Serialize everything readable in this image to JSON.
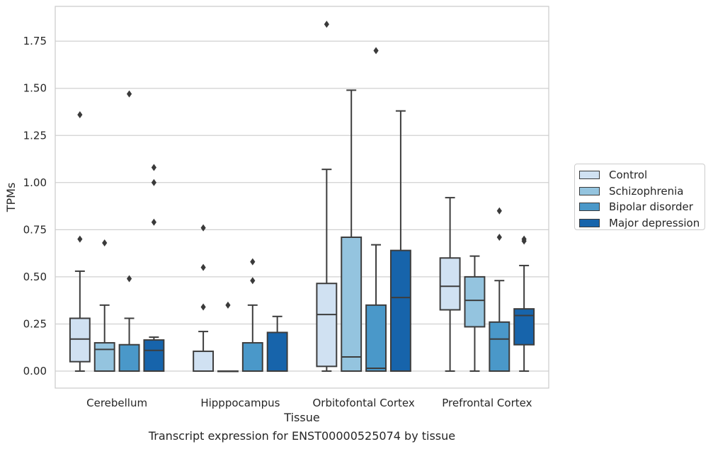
{
  "caption": "Transcript expression for ENST00000525074 by tissue",
  "chart_data": {
    "type": "box",
    "xlabel": "Tissue",
    "ylabel": "TPMs",
    "ylim": [
      -0.09,
      1.94
    ],
    "yticks": [
      0.0,
      0.25,
      0.5,
      0.75,
      1.0,
      1.25,
      1.5,
      1.75
    ],
    "ytick_labels": [
      "0.00",
      "0.25",
      "0.50",
      "0.75",
      "1.00",
      "1.25",
      "1.50",
      "1.75"
    ],
    "grid": "horizontal",
    "legend_position": "right",
    "categories": [
      "Cerebellum",
      "Hipppocampus",
      "Orbitofontal Cortex",
      "Prefrontal Cortex"
    ],
    "series": [
      {
        "name": "Control",
        "color": "#d0e1f2",
        "boxes": [
          {
            "whisker_low": 0.0,
            "q1": 0.05,
            "median": 0.17,
            "q3": 0.28,
            "whisker_high": 0.53,
            "outliers": [
              0.7,
              1.36
            ]
          },
          {
            "whisker_low": 0.0,
            "q1": 0.0,
            "median": 0.0,
            "q3": 0.105,
            "whisker_high": 0.21,
            "outliers": [
              0.34,
              0.55,
              0.76
            ]
          },
          {
            "whisker_low": 0.0,
            "q1": 0.025,
            "median": 0.3,
            "q3": 0.465,
            "whisker_high": 1.07,
            "outliers": [
              1.84
            ]
          },
          {
            "whisker_low": 0.0,
            "q1": 0.325,
            "median": 0.45,
            "q3": 0.6,
            "whisker_high": 0.92,
            "outliers": []
          }
        ]
      },
      {
        "name": "Schizophrenia",
        "color": "#94c4df",
        "boxes": [
          {
            "whisker_low": 0.0,
            "q1": 0.0,
            "median": 0.115,
            "q3": 0.15,
            "whisker_high": 0.35,
            "outliers": [
              0.68
            ]
          },
          {
            "whisker_low": 0.0,
            "q1": 0.0,
            "median": 0.0,
            "q3": 0.0,
            "whisker_high": 0.0,
            "outliers": [
              0.35
            ]
          },
          {
            "whisker_low": 0.0,
            "q1": 0.0,
            "median": 0.075,
            "q3": 0.71,
            "whisker_high": 1.49,
            "outliers": []
          },
          {
            "whisker_low": 0.0,
            "q1": 0.235,
            "median": 0.375,
            "q3": 0.5,
            "whisker_high": 0.61,
            "outliers": []
          }
        ]
      },
      {
        "name": "Bipolar disorder",
        "color": "#4a98c9",
        "boxes": [
          {
            "whisker_low": 0.0,
            "q1": 0.0,
            "median": 0.0,
            "q3": 0.14,
            "whisker_high": 0.28,
            "outliers": [
              0.49,
              1.47
            ]
          },
          {
            "whisker_low": 0.0,
            "q1": 0.0,
            "median": 0.0,
            "q3": 0.15,
            "whisker_high": 0.35,
            "outliers": [
              0.48,
              0.58
            ]
          },
          {
            "whisker_low": 0.0,
            "q1": 0.0,
            "median": 0.015,
            "q3": 0.35,
            "whisker_high": 0.67,
            "outliers": [
              1.7
            ]
          },
          {
            "whisker_low": 0.0,
            "q1": 0.0,
            "median": 0.17,
            "q3": 0.26,
            "whisker_high": 0.48,
            "outliers": [
              0.71,
              0.85
            ]
          }
        ]
      },
      {
        "name": "Major depression",
        "color": "#1764ab",
        "boxes": [
          {
            "whisker_low": 0.0,
            "q1": 0.0,
            "median": 0.11,
            "q3": 0.165,
            "whisker_high": 0.18,
            "outliers": [
              0.79,
              1.0,
              1.08
            ]
          },
          {
            "whisker_low": 0.0,
            "q1": 0.0,
            "median": 0.0,
            "q3": 0.205,
            "whisker_high": 0.29,
            "outliers": []
          },
          {
            "whisker_low": 0.0,
            "q1": 0.0,
            "median": 0.39,
            "q3": 0.64,
            "whisker_high": 1.38,
            "outliers": []
          },
          {
            "whisker_low": 0.0,
            "q1": 0.14,
            "median": 0.295,
            "q3": 0.33,
            "whisker_high": 0.56,
            "outliers": [
              0.69,
              0.7
            ]
          }
        ]
      }
    ]
  }
}
